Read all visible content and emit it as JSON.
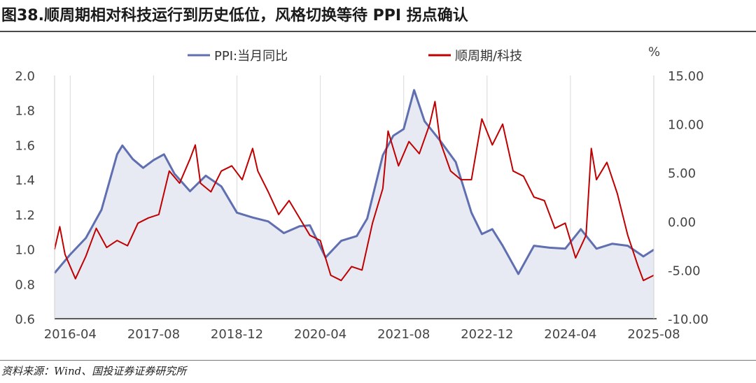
{
  "header": {
    "title": "图38.顺周期相对科技运行到历史低位，风格切换等待 PPI 拐点确认"
  },
  "footer": {
    "source": "资料来源：Wind、国投证券证券研究所"
  },
  "colors": {
    "ppi": "#5f6fb0",
    "ratio": "#c00000",
    "area": "#e8eaf3",
    "grid": "#d9d9d9"
  },
  "chart_data": {
    "type": "line",
    "title": "",
    "x_ticks": [
      "2016-04",
      "2017-08",
      "2018-12",
      "2020-04",
      "2021-08",
      "2022-12",
      "2024-04",
      "2025-08"
    ],
    "x_range": [
      "2016-01",
      "2025-08"
    ],
    "y_left": {
      "range": [
        0.6,
        2.0
      ],
      "ticks": [
        "0.6",
        "0.8",
        "1.0",
        "1.2",
        "1.4",
        "1.6",
        "1.8",
        "2.0"
      ]
    },
    "y_right": {
      "range": [
        -10,
        15
      ],
      "ticks": [
        "-10.00",
        "-5.00",
        "0.00",
        "5.00",
        "10.00",
        "15.00"
      ],
      "unit": "%"
    },
    "legend": {
      "placement": "top"
    },
    "series": [
      {
        "name": "PPI:当月同比",
        "axis": "right",
        "style": "area-line",
        "points": [
          [
            "2016-01",
            -5.3
          ],
          [
            "2016-04",
            -3.4
          ],
          [
            "2016-07",
            -1.7
          ],
          [
            "2016-10",
            1.2
          ],
          [
            "2017-01",
            6.9
          ],
          [
            "2017-02",
            7.8
          ],
          [
            "2017-04",
            6.4
          ],
          [
            "2017-06",
            5.5
          ],
          [
            "2017-08",
            6.3
          ],
          [
            "2017-10",
            6.9
          ],
          [
            "2017-12",
            4.9
          ],
          [
            "2018-03",
            3.1
          ],
          [
            "2018-06",
            4.7
          ],
          [
            "2018-09",
            3.6
          ],
          [
            "2018-12",
            0.9
          ],
          [
            "2019-03",
            0.4
          ],
          [
            "2019-06",
            0.0
          ],
          [
            "2019-09",
            -1.2
          ],
          [
            "2019-12",
            -0.5
          ],
          [
            "2020-02",
            -0.4
          ],
          [
            "2020-05",
            -3.7
          ],
          [
            "2020-08",
            -2.0
          ],
          [
            "2020-11",
            -1.5
          ],
          [
            "2021-01",
            0.3
          ],
          [
            "2021-04",
            6.8
          ],
          [
            "2021-06",
            8.8
          ],
          [
            "2021-08",
            9.5
          ],
          [
            "2021-10",
            13.5
          ],
          [
            "2021-12",
            10.3
          ],
          [
            "2022-03",
            8.3
          ],
          [
            "2022-06",
            6.1
          ],
          [
            "2022-09",
            0.9
          ],
          [
            "2022-11",
            -1.3
          ],
          [
            "2023-01",
            -0.8
          ],
          [
            "2023-03",
            -2.5
          ],
          [
            "2023-06",
            -5.4
          ],
          [
            "2023-09",
            -2.5
          ],
          [
            "2023-12",
            -2.7
          ],
          [
            "2024-03",
            -2.8
          ],
          [
            "2024-06",
            -0.8
          ],
          [
            "2024-09",
            -2.8
          ],
          [
            "2024-12",
            -2.3
          ],
          [
            "2025-03",
            -2.5
          ],
          [
            "2025-06",
            -3.6
          ],
          [
            "2025-08",
            -2.9
          ]
        ]
      },
      {
        "name": "顺周期/科技",
        "axis": "left",
        "style": "line",
        "points": [
          [
            "2016-01",
            1.0
          ],
          [
            "2016-02",
            1.13
          ],
          [
            "2016-03",
            0.97
          ],
          [
            "2016-05",
            0.83
          ],
          [
            "2016-07",
            0.96
          ],
          [
            "2016-09",
            1.12
          ],
          [
            "2016-11",
            1.01
          ],
          [
            "2017-01",
            1.05
          ],
          [
            "2017-03",
            1.02
          ],
          [
            "2017-05",
            1.15
          ],
          [
            "2017-07",
            1.18
          ],
          [
            "2017-09",
            1.2
          ],
          [
            "2017-11",
            1.45
          ],
          [
            "2018-01",
            1.38
          ],
          [
            "2018-03",
            1.52
          ],
          [
            "2018-04",
            1.6
          ],
          [
            "2018-05",
            1.38
          ],
          [
            "2018-07",
            1.33
          ],
          [
            "2018-09",
            1.45
          ],
          [
            "2018-11",
            1.48
          ],
          [
            "2019-01",
            1.4
          ],
          [
            "2019-03",
            1.58
          ],
          [
            "2019-04",
            1.45
          ],
          [
            "2019-06",
            1.33
          ],
          [
            "2019-08",
            1.2
          ],
          [
            "2019-10",
            1.28
          ],
          [
            "2019-12",
            1.18
          ],
          [
            "2020-02",
            1.08
          ],
          [
            "2020-04",
            1.05
          ],
          [
            "2020-06",
            0.85
          ],
          [
            "2020-08",
            0.82
          ],
          [
            "2020-10",
            0.9
          ],
          [
            "2020-12",
            0.88
          ],
          [
            "2021-02",
            1.15
          ],
          [
            "2021-04",
            1.35
          ],
          [
            "2021-05",
            1.68
          ],
          [
            "2021-07",
            1.48
          ],
          [
            "2021-09",
            1.62
          ],
          [
            "2021-11",
            1.55
          ],
          [
            "2022-01",
            1.72
          ],
          [
            "2022-02",
            1.85
          ],
          [
            "2022-03",
            1.62
          ],
          [
            "2022-05",
            1.45
          ],
          [
            "2022-07",
            1.4
          ],
          [
            "2022-09",
            1.4
          ],
          [
            "2022-11",
            1.75
          ],
          [
            "2023-01",
            1.6
          ],
          [
            "2023-03",
            1.72
          ],
          [
            "2023-05",
            1.45
          ],
          [
            "2023-07",
            1.42
          ],
          [
            "2023-09",
            1.3
          ],
          [
            "2023-11",
            1.28
          ],
          [
            "2024-01",
            1.12
          ],
          [
            "2024-03",
            1.15
          ],
          [
            "2024-05",
            0.95
          ],
          [
            "2024-07",
            1.08
          ],
          [
            "2024-08",
            1.58
          ],
          [
            "2024-09",
            1.4
          ],
          [
            "2024-11",
            1.5
          ],
          [
            "2025-01",
            1.32
          ],
          [
            "2025-03",
            1.08
          ],
          [
            "2025-05",
            0.9
          ],
          [
            "2025-06",
            0.82
          ],
          [
            "2025-08",
            0.85
          ]
        ]
      }
    ]
  }
}
